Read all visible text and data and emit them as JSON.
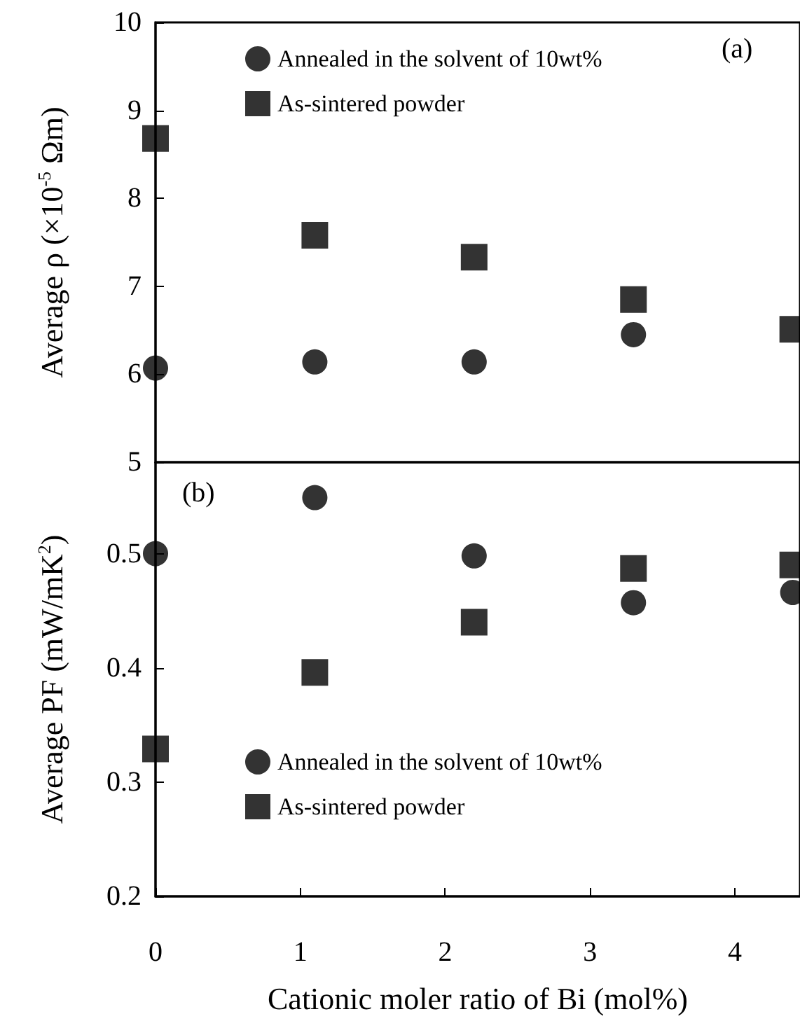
{
  "chart_data": [
    {
      "type": "scatter",
      "ylabel": "Average ρ (×10$^{-5}$ Ωm)",
      "x": [
        0,
        1.1,
        2.2,
        3.3,
        4.4
      ],
      "xlim": [
        0,
        4.45
      ],
      "ylim": [
        5,
        10
      ],
      "yticks": [
        5,
        6,
        7,
        8,
        9,
        10
      ],
      "tick_labels": "y",
      "legend": "top",
      "annotations": [
        "(a)"
      ],
      "series": [
        {
          "name": "Annealed in the solvent of 10wt%",
          "color": "#000000",
          "marker": "circle",
          "values": [
            6.07,
            6.14,
            6.14,
            6.45,
            null
          ]
        },
        {
          "name": "As-sintered powder",
          "color": "#000000",
          "marker": "square",
          "values": [
            8.68,
            7.58,
            7.33,
            6.85,
            6.51
          ]
        }
      ]
    },
    {
      "type": "scatter",
      "xlabel": "Cationic moler ratio of Bi (mol%)",
      "ylabel": "Average PF (mW/mK$^{2}$)",
      "x": [
        0,
        1.1,
        2.2,
        3.3,
        4.4
      ],
      "xlim": [
        0,
        4.45
      ],
      "xticks": [
        0,
        1,
        2,
        3,
        4
      ],
      "ylim": [
        0.2,
        0.58
      ],
      "yticks": [
        0.2,
        0.3,
        0.4,
        0.5
      ],
      "legend": "bottom",
      "annotations": [
        "(b)"
      ],
      "series": [
        {
          "name": "Annealed in the solvent of 10wt%",
          "color": "#000000",
          "marker": "circle",
          "values": [
            0.5,
            0.549,
            0.498,
            0.457,
            0.466
          ]
        },
        {
          "name": "As-sintered powder",
          "color": "#000000",
          "marker": "square",
          "values": [
            0.329,
            0.396,
            0.44,
            0.487,
            0.49
          ]
        }
      ]
    }
  ]
}
